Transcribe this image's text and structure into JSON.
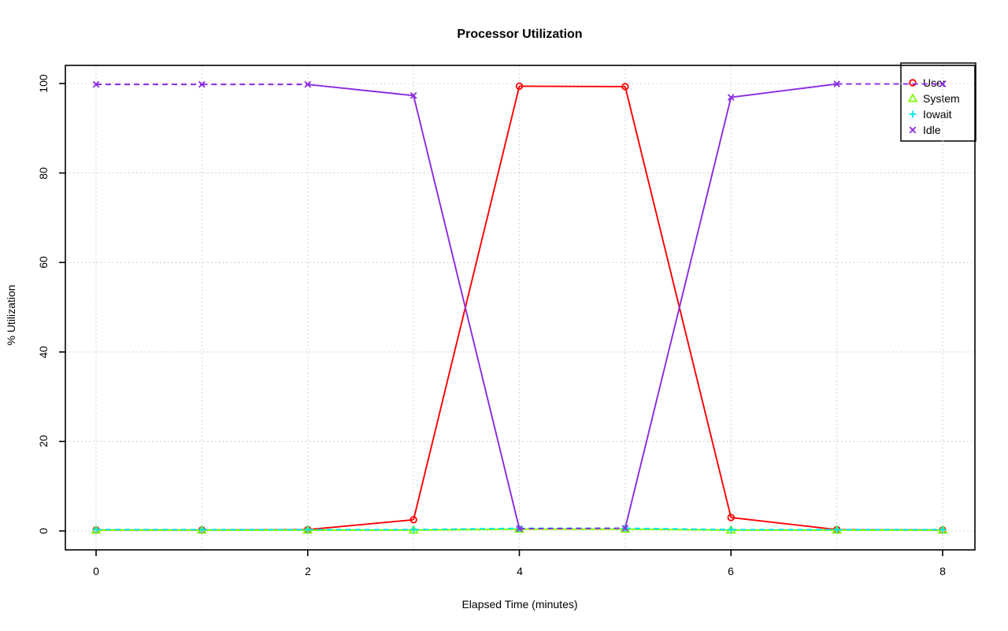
{
  "chart_data": {
    "type": "line",
    "title": "Processor Utilization",
    "xlabel": "Elapsed Time (minutes)",
    "ylabel": "% Utilization",
    "x": [
      0,
      1,
      2,
      3,
      4,
      5,
      6,
      7,
      8
    ],
    "xlim": [
      0,
      8
    ],
    "ylim": [
      0,
      100
    ],
    "xticks": [
      0,
      2,
      4,
      6,
      8
    ],
    "yticks": [
      0,
      20,
      40,
      60,
      80,
      100
    ],
    "xtick_labels": [
      "0",
      "2",
      "4",
      "6",
      "8"
    ],
    "ytick_labels": [
      "0",
      "20",
      "40",
      "60",
      "80",
      "100"
    ],
    "grid": {
      "style": "dotted",
      "color": "#c9c9c9",
      "x_every": 1,
      "y_every": 20
    },
    "legend_position": "top-right",
    "series": [
      {
        "name": "User",
        "color": "#ff0000",
        "marker": "circle",
        "linestyle": "solid",
        "values": [
          0.2,
          0.2,
          0.3,
          2.5,
          99.4,
          99.3,
          3.0,
          0.3,
          0.2
        ]
      },
      {
        "name": "System",
        "color": "#7cfc00",
        "marker": "triangle",
        "linestyle": "solid",
        "values": [
          0.2,
          0.2,
          0.2,
          0.2,
          0.4,
          0.4,
          0.2,
          0.2,
          0.2
        ]
      },
      {
        "name": "Iowait",
        "color": "#00e5ee",
        "marker": "plus",
        "linestyle": "dashed",
        "values": [
          0.3,
          0.3,
          0.3,
          0.3,
          0.6,
          0.6,
          0.3,
          0.3,
          0.3
        ]
      },
      {
        "name": "Idle",
        "color": "#8a2be2",
        "marker": "x",
        "linestyle": "dashed",
        "values": [
          99.8,
          99.8,
          99.8,
          97.3,
          0.5,
          0.6,
          96.9,
          99.9,
          99.9
        ]
      }
    ]
  }
}
